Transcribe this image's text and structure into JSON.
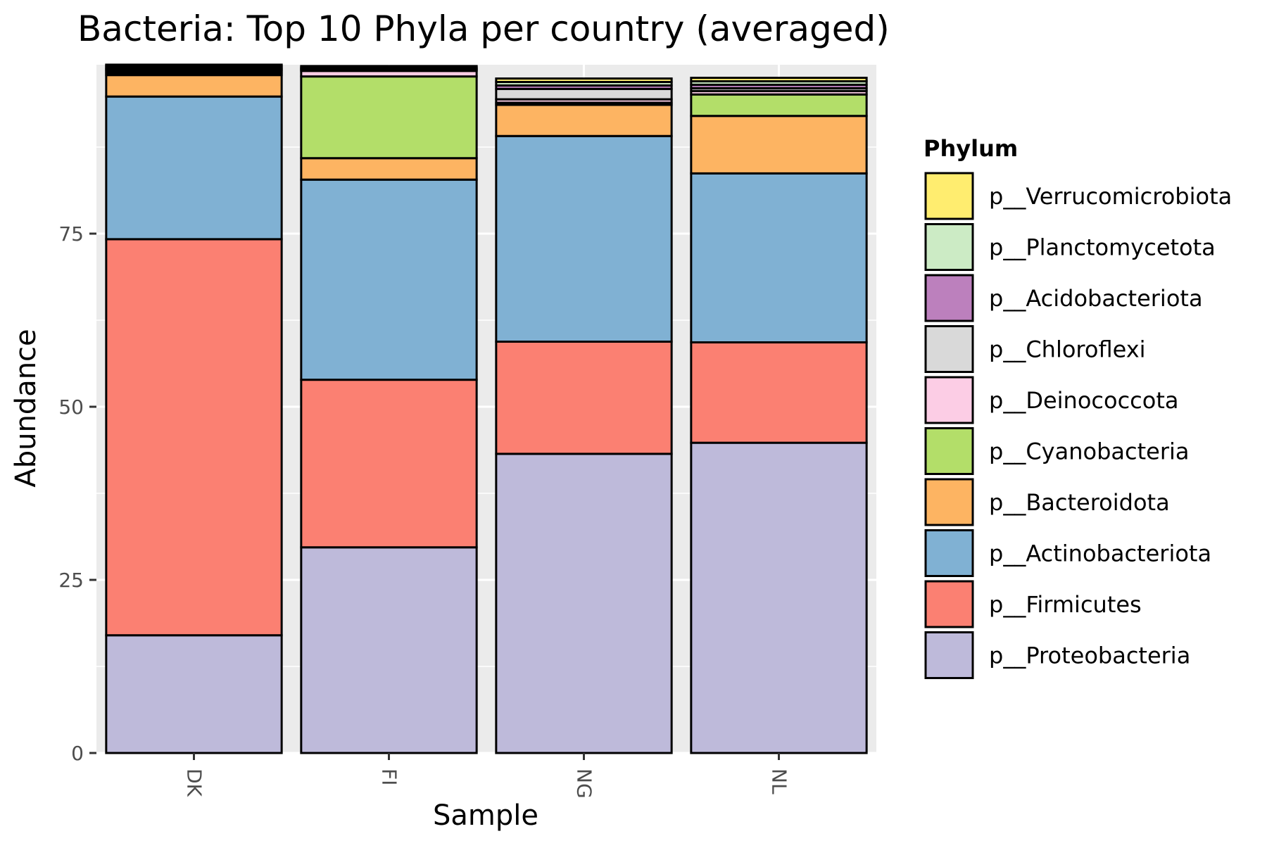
{
  "chart_data": {
    "type": "bar",
    "stacked": true,
    "title": "Bacteria: Top 10 Phyla per country (averaged)",
    "xlabel": "Sample",
    "ylabel": "Abundance",
    "categories": [
      "DK",
      "FI",
      "NG",
      "NL"
    ],
    "ylim": [
      0,
      100
    ],
    "yticks": [
      0,
      25,
      50,
      75
    ],
    "grid": true,
    "legend": {
      "title": "Phylum",
      "position": "right"
    },
    "series": [
      {
        "name": "p__Proteobacteria",
        "color": "#BEBADA",
        "values": [
          17.0,
          29.7,
          43.2,
          44.8
        ]
      },
      {
        "name": "p__Firmicutes",
        "color": "#FB8072",
        "values": [
          57.2,
          24.2,
          16.2,
          14.5
        ]
      },
      {
        "name": "p__Actinobacteriota",
        "color": "#80B1D3",
        "values": [
          20.6,
          28.9,
          29.7,
          24.4
        ]
      },
      {
        "name": "p__Bacteroidota",
        "color": "#FDB462",
        "values": [
          3.1,
          3.1,
          4.5,
          8.3
        ]
      },
      {
        "name": "p__Cyanobacteria",
        "color": "#B3DE69",
        "values": [
          0.3,
          11.8,
          0.3,
          3.1
        ]
      },
      {
        "name": "p__Deinococcota",
        "color": "#FCCDE5",
        "values": [
          0.3,
          0.8,
          0.5,
          0.5
        ]
      },
      {
        "name": "p__Chloroflexi",
        "color": "#D9D9D9",
        "values": [
          0.2,
          0.2,
          1.5,
          0.4
        ]
      },
      {
        "name": "p__Acidobacteriota",
        "color": "#BC80BD",
        "values": [
          0.2,
          0.1,
          0.5,
          0.5
        ]
      },
      {
        "name": "p__Planctomycetota",
        "color": "#CCEBC5",
        "values": [
          0.3,
          0.2,
          0.5,
          0.5
        ]
      },
      {
        "name": "p__Verrucomicrobiota",
        "color": "#FFED6F",
        "values": [
          0.2,
          0.2,
          0.5,
          0.5
        ]
      }
    ],
    "panel_background": "#EBEBEB",
    "grid_color": "#FFFFFF",
    "bar_outline": "#000000"
  }
}
